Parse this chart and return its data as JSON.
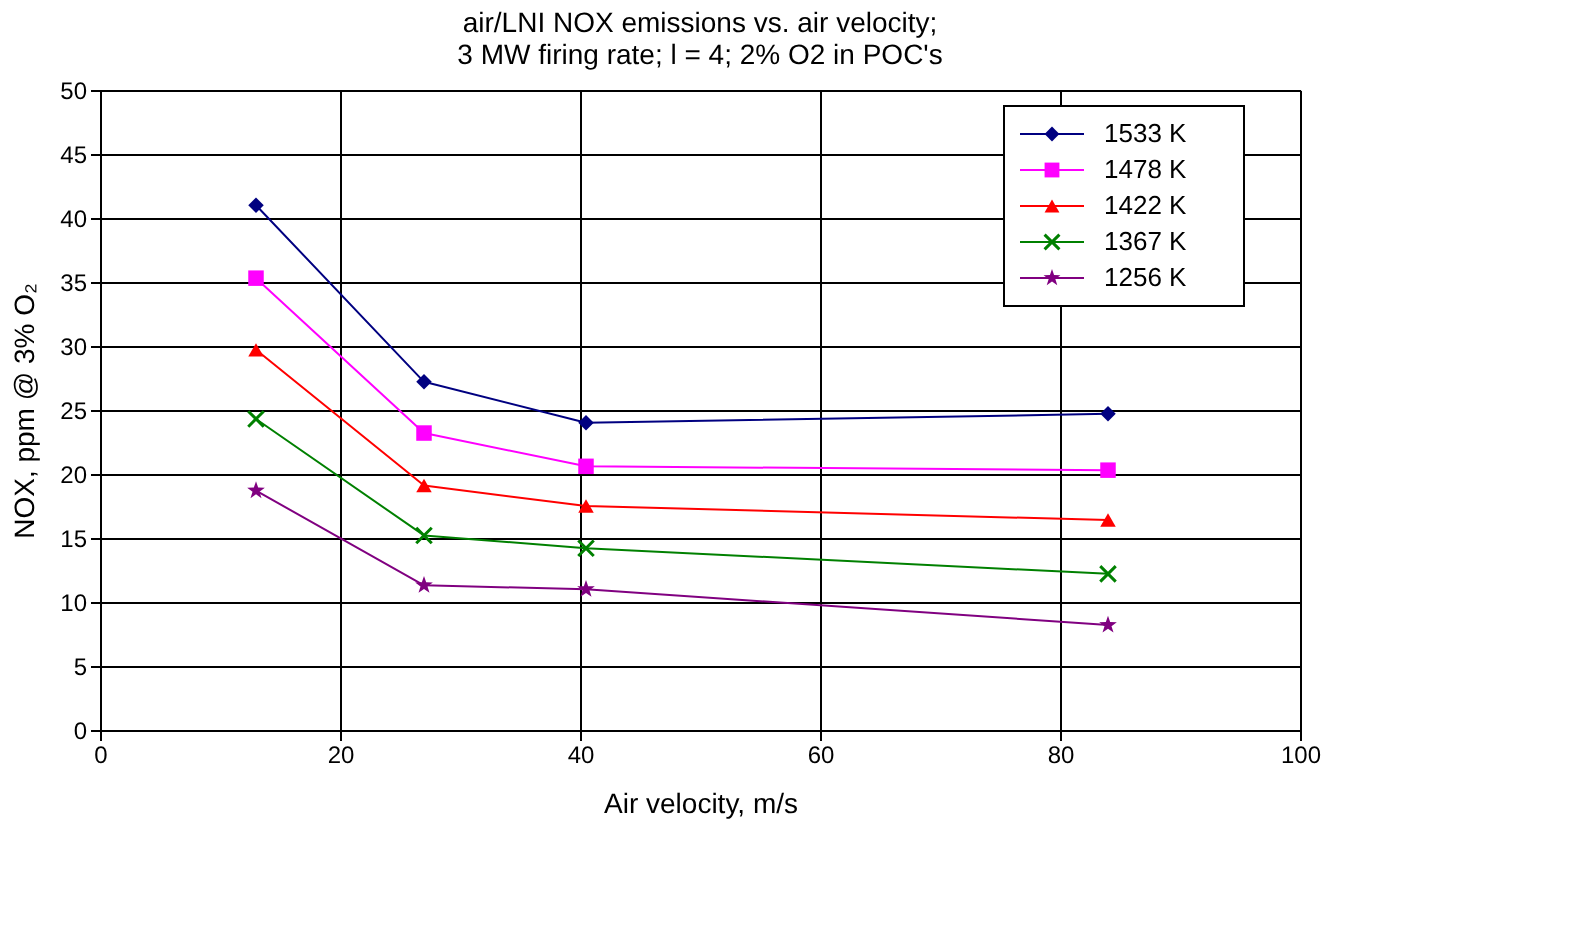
{
  "chart_data": {
    "type": "line",
    "title": [
      "air/LNI NOX emissions vs. air velocity;",
      "3 MW firing rate;  l = 4;  2% O2 in POC's"
    ],
    "xlabel": "Air velocity, m/s",
    "ylabel": "NOX,  ppm @ 3% O₂",
    "x": [
      13,
      27,
      40.5,
      84
    ],
    "series": [
      {
        "name": "1533 K",
        "color": "#000080",
        "marker": "diamond",
        "values": [
          41,
          27.2,
          24,
          24.7
        ]
      },
      {
        "name": "1478 K",
        "color": "#ff00ff",
        "marker": "square",
        "values": [
          35.3,
          23.2,
          20.6,
          20.3
        ]
      },
      {
        "name": "1422 K",
        "color": "#ff0000",
        "marker": "triangle",
        "values": [
          29.7,
          19.1,
          17.5,
          16.4
        ]
      },
      {
        "name": "1367 K",
        "color": "#008000",
        "marker": "cross",
        "values": [
          24.3,
          15.2,
          14.2,
          12.2
        ]
      },
      {
        "name": "1256 K",
        "color": "#800080",
        "marker": "star",
        "values": [
          18.7,
          11.3,
          11.0,
          8.2
        ]
      }
    ],
    "xlim": [
      0,
      100
    ],
    "xticks": [
      0,
      20,
      40,
      60,
      80,
      100
    ],
    "ylim": [
      0,
      50
    ],
    "yticks": [
      0,
      5,
      10,
      15,
      20,
      25,
      30,
      35,
      40,
      45,
      50
    ],
    "grid": true,
    "legend": "top right",
    "line_style": "solid"
  }
}
